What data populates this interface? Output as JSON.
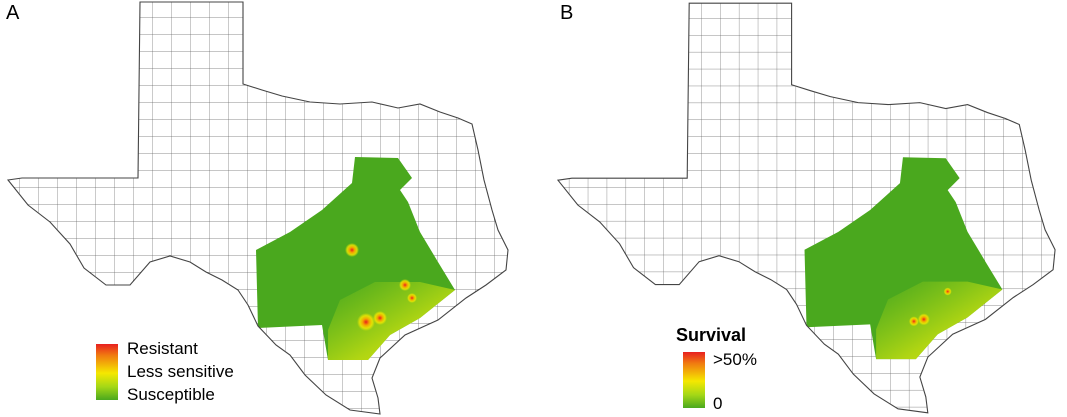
{
  "panels": [
    {
      "label": "A"
    },
    {
      "label": "B"
    }
  ],
  "legend_a": {
    "entries": [
      "Resistant",
      "Less sensitive",
      "Susceptible"
    ]
  },
  "legend_b": {
    "title": "Survival",
    "max_label": ">50%",
    "min_label": "0"
  },
  "colors": {
    "high": "#e82020",
    "mid": "#f5e800",
    "low": "#4aa81e",
    "border": "#555555"
  }
}
